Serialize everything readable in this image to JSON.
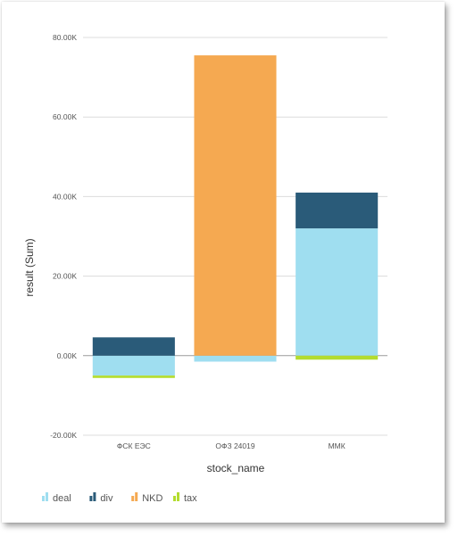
{
  "colors": {
    "deal": "#9fdef0",
    "div": "#2a5b79",
    "NKD": "#f5a951",
    "tax": "#b3dc2f",
    "grid": "#dcdcdc",
    "zero_line": "#9a9a9a"
  },
  "chart_data": {
    "type": "bar",
    "stacked": true,
    "title": "",
    "xlabel": "stock_name",
    "ylabel": "result (Sum)",
    "categories": [
      "ФСК ЕЭС",
      "ОФЗ 24019",
      "ММК"
    ],
    "series": [
      {
        "name": "deal",
        "values": [
          -5000,
          -1500,
          32000
        ]
      },
      {
        "name": "div",
        "values": [
          4600,
          0,
          9000
        ]
      },
      {
        "name": "NKD",
        "values": [
          0,
          75500,
          0
        ]
      },
      {
        "name": "tax",
        "values": [
          -600,
          0,
          -1000
        ]
      }
    ],
    "ylim": [
      -20000,
      80000
    ],
    "yticks": [
      -20000,
      0,
      20000,
      40000,
      60000,
      80000
    ],
    "ytick_labels": [
      "-20.00K",
      "0.00K",
      "20.00K",
      "40.00K",
      "60.00K",
      "80.00K"
    ],
    "grid": true,
    "legend_position": "bottom-left"
  }
}
